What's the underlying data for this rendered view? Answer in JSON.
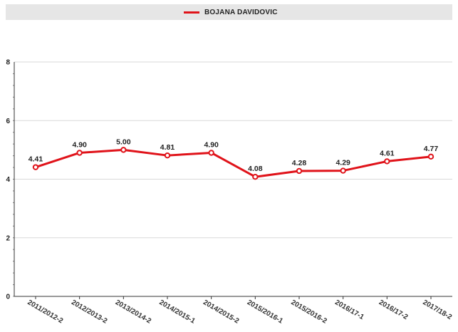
{
  "legend": {
    "series_name": "BOJANA DAVIDOVIC"
  },
  "colors": {
    "series": "#e0131a",
    "grid": "#d9d9d9",
    "axis": "#333333",
    "legend_background": "#e6e6e6"
  },
  "chart_data": {
    "type": "line",
    "title": "",
    "xlabel": "",
    "ylabel": "",
    "categories": [
      "2011/2012-2",
      "2012/2013-2",
      "2013/2014-2",
      "2014/2015-1",
      "2014/2015-2",
      "2015/2016-1",
      "2015/2016-2",
      "2016/17-1",
      "2016/17-2",
      "2017/18-2"
    ],
    "series": [
      {
        "name": "BOJANA DAVIDOVIC",
        "values": [
          4.41,
          4.9,
          5.0,
          4.81,
          4.9,
          4.08,
          4.28,
          4.29,
          4.61,
          4.77
        ],
        "labels": [
          "4.41",
          "4.90",
          "5.00",
          "4.81",
          "4.90",
          "4.08",
          "4.28",
          "4.29",
          "4.61",
          "4.77"
        ]
      }
    ],
    "ylim": [
      0,
      8
    ],
    "yticks": [
      0,
      2,
      4,
      6,
      8
    ],
    "grid": true,
    "legend_position": "top"
  }
}
